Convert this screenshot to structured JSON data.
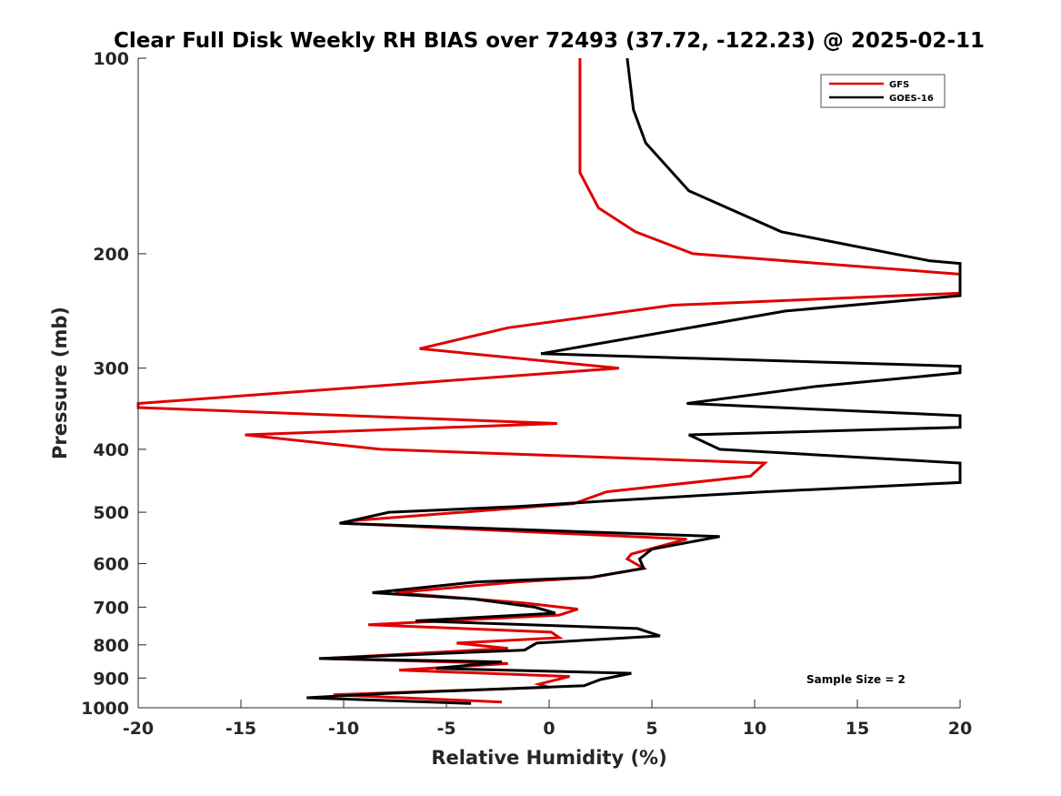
{
  "chart_data": {
    "type": "line",
    "title": "Clear Full Disk Weekly RH BIAS over 72493 (37.72, -122.23) @ 2025-02-11",
    "xlabel": "Relative Humidity (%)",
    "ylabel": "Pressure (mb)",
    "xlim": [
      -20,
      20
    ],
    "ylim": [
      100,
      1000
    ],
    "y_scale": "log",
    "y_reversed": true,
    "x_ticks": [
      "-20",
      "-15",
      "-10",
      "-5",
      "0",
      "5",
      "10",
      "15",
      "20"
    ],
    "y_ticks": [
      "100",
      "200",
      "300",
      "400",
      "500",
      "600",
      "700",
      "800",
      "900",
      "1000"
    ],
    "grid": false,
    "legend_position": "top-right",
    "annotation": "Sample Size = 2",
    "series": [
      {
        "name": "GFS",
        "color": "#e00000",
        "points": [
          [
            1.5,
            100
          ],
          [
            1.5,
            125
          ],
          [
            1.5,
            150
          ],
          [
            2.4,
            170
          ],
          [
            4.2,
            185
          ],
          [
            7.0,
            200
          ],
          [
            20.0,
            215
          ],
          [
            20.0,
            230
          ],
          [
            6.0,
            240
          ],
          [
            -2.0,
            260
          ],
          [
            -6.3,
            280
          ],
          [
            3.4,
            300
          ],
          [
            -20.0,
            340
          ],
          [
            -20.0,
            345
          ],
          [
            0.4,
            365
          ],
          [
            -14.8,
            380
          ],
          [
            -8.2,
            400
          ],
          [
            10.5,
            420
          ],
          [
            9.8,
            440
          ],
          [
            2.8,
            465
          ],
          [
            1.2,
            485
          ],
          [
            -9.5,
            515
          ],
          [
            -10.0,
            520
          ],
          [
            6.7,
            550
          ],
          [
            4.0,
            580
          ],
          [
            3.8,
            590
          ],
          [
            4.6,
            610
          ],
          [
            2.1,
            630
          ],
          [
            -1.5,
            640
          ],
          [
            -7.5,
            665
          ],
          [
            -1.2,
            690
          ],
          [
            1.4,
            705
          ],
          [
            0.5,
            720
          ],
          [
            -8.8,
            745
          ],
          [
            0.1,
            765
          ],
          [
            0.5,
            780
          ],
          [
            -4.5,
            795
          ],
          [
            -2.0,
            810
          ],
          [
            -11.0,
            840
          ],
          [
            -2.0,
            855
          ],
          [
            -7.3,
            875
          ],
          [
            1.0,
            895
          ],
          [
            -0.5,
            920
          ],
          [
            0.0,
            930
          ],
          [
            -10.5,
            955
          ],
          [
            -2.3,
            980
          ]
        ]
      },
      {
        "name": "GOES-16",
        "color": "#000000",
        "points": [
          [
            3.8,
            100
          ],
          [
            4.1,
            120
          ],
          [
            4.7,
            135
          ],
          [
            6.8,
            160
          ],
          [
            11.3,
            185
          ],
          [
            18.5,
            205
          ],
          [
            20.0,
            207
          ],
          [
            20.0,
            232
          ],
          [
            11.5,
            245
          ],
          [
            -0.4,
            285
          ],
          [
            20.0,
            298
          ],
          [
            20.0,
            305
          ],
          [
            13.0,
            320
          ],
          [
            6.7,
            340
          ],
          [
            20.0,
            355
          ],
          [
            20.0,
            370
          ],
          [
            6.8,
            380
          ],
          [
            8.3,
            400
          ],
          [
            20.0,
            420
          ],
          [
            20.0,
            450
          ],
          [
            10.5,
            465
          ],
          [
            3.0,
            480
          ],
          [
            -1.5,
            490
          ],
          [
            -7.8,
            500
          ],
          [
            -10.2,
            520
          ],
          [
            8.3,
            545
          ],
          [
            5.0,
            570
          ],
          [
            4.4,
            590
          ],
          [
            4.6,
            610
          ],
          [
            2.0,
            630
          ],
          [
            -3.5,
            640
          ],
          [
            -8.6,
            665
          ],
          [
            -3.7,
            680
          ],
          [
            -0.7,
            700
          ],
          [
            0.3,
            715
          ],
          [
            -6.5,
            735
          ],
          [
            4.3,
            755
          ],
          [
            5.4,
            775
          ],
          [
            -0.6,
            795
          ],
          [
            -1.2,
            815
          ],
          [
            -11.2,
            840
          ],
          [
            -2.3,
            850
          ],
          [
            -5.5,
            870
          ],
          [
            4.0,
            885
          ],
          [
            2.5,
            905
          ],
          [
            1.7,
            925
          ],
          [
            -7.8,
            950
          ],
          [
            -11.8,
            965
          ],
          [
            -3.8,
            985
          ]
        ]
      }
    ]
  }
}
